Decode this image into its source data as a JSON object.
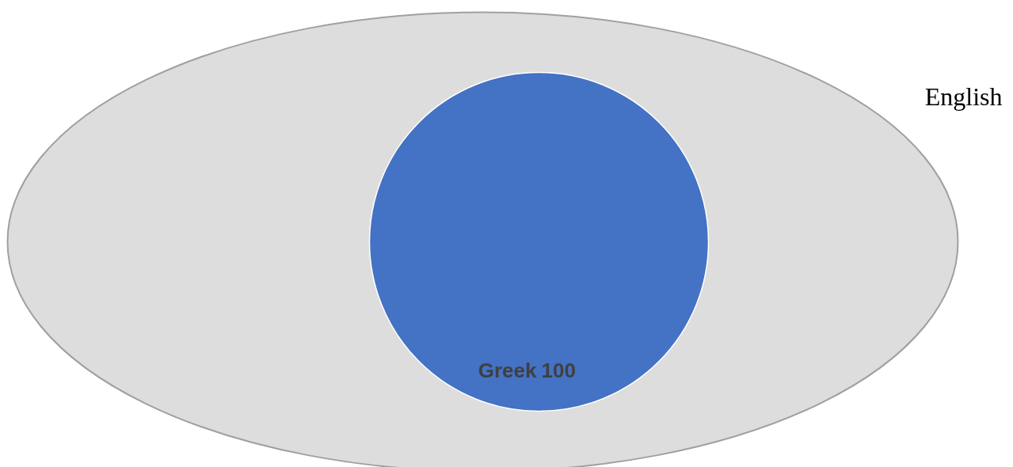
{
  "chart_data": {
    "type": "pie",
    "categories": [
      "Greek"
    ],
    "values": [
      100
    ],
    "colors": [
      "#4472c4"
    ],
    "data_labels": true,
    "annotations": [
      "English"
    ]
  }
}
